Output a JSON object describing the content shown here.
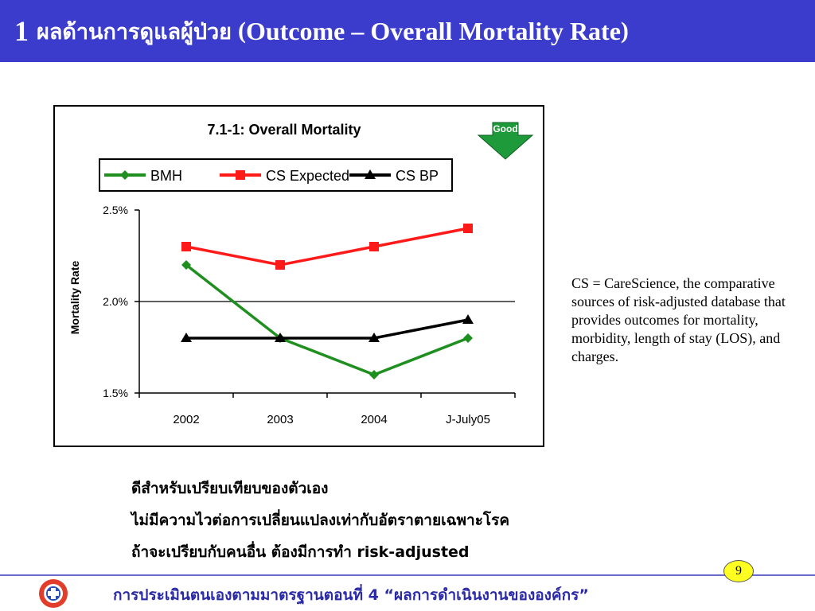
{
  "slide": {
    "title_number": "1",
    "title_thai": "ผลด้านการดูแลผู้ป่วย",
    "title_open_paren": "(",
    "title_english": "Outcome – Overall Mortality Rate",
    "title_close_paren": ")"
  },
  "chart_data": {
    "type": "line",
    "title": "7.1-1: Overall Mortality",
    "badge_label": "Good",
    "ylabel": "Mortality Rate",
    "xlabel": "",
    "categories": [
      "2002",
      "2003",
      "2004",
      "J-July05"
    ],
    "y_ticks": [
      "2.5%",
      "2.0%",
      "1.5%"
    ],
    "y_tick_values": [
      2.5,
      2.0,
      1.5
    ],
    "ylim": [
      1.5,
      2.5
    ],
    "gridline_values": [
      2.0
    ],
    "legend_placement": "top",
    "series": [
      {
        "name": "BMH",
        "color": "#1f8f1f",
        "marker": "diamond",
        "values": [
          2.2,
          1.8,
          1.6,
          1.8
        ]
      },
      {
        "name": "CS Expected",
        "color": "#ff1a1a",
        "marker": "square",
        "values": [
          2.3,
          2.2,
          2.3,
          2.4
        ]
      },
      {
        "name": "CS BP",
        "color": "#000000",
        "marker": "triangle",
        "values": [
          1.8,
          1.8,
          1.8,
          1.9
        ]
      }
    ]
  },
  "side_note": {
    "text": "CS = CareScience, the comparative sources of risk-adjusted database that provides outcomes for mortality, morbidity, length of stay (LOS), and charges."
  },
  "bullets": [
    "ดีสำหรับเปรียบเทียบของตัวเอง",
    "ไม่มีความไวต่อการเปลี่ยนแปลงเท่ากับอัตราตายเฉพาะโรค",
    "ถ้าจะเปรียบกับคนอื่น ต้องมีการทำ risk-adjusted"
  ],
  "footer": {
    "text": "การประเมินตนเองตามมาตรฐานตอนที่ 4 “ผลการดำเนินงานขององค์กร”",
    "page_number": "9",
    "logo_icon": "red-cross-emblem-icon",
    "badge_icon": "down-arrow-icon"
  }
}
